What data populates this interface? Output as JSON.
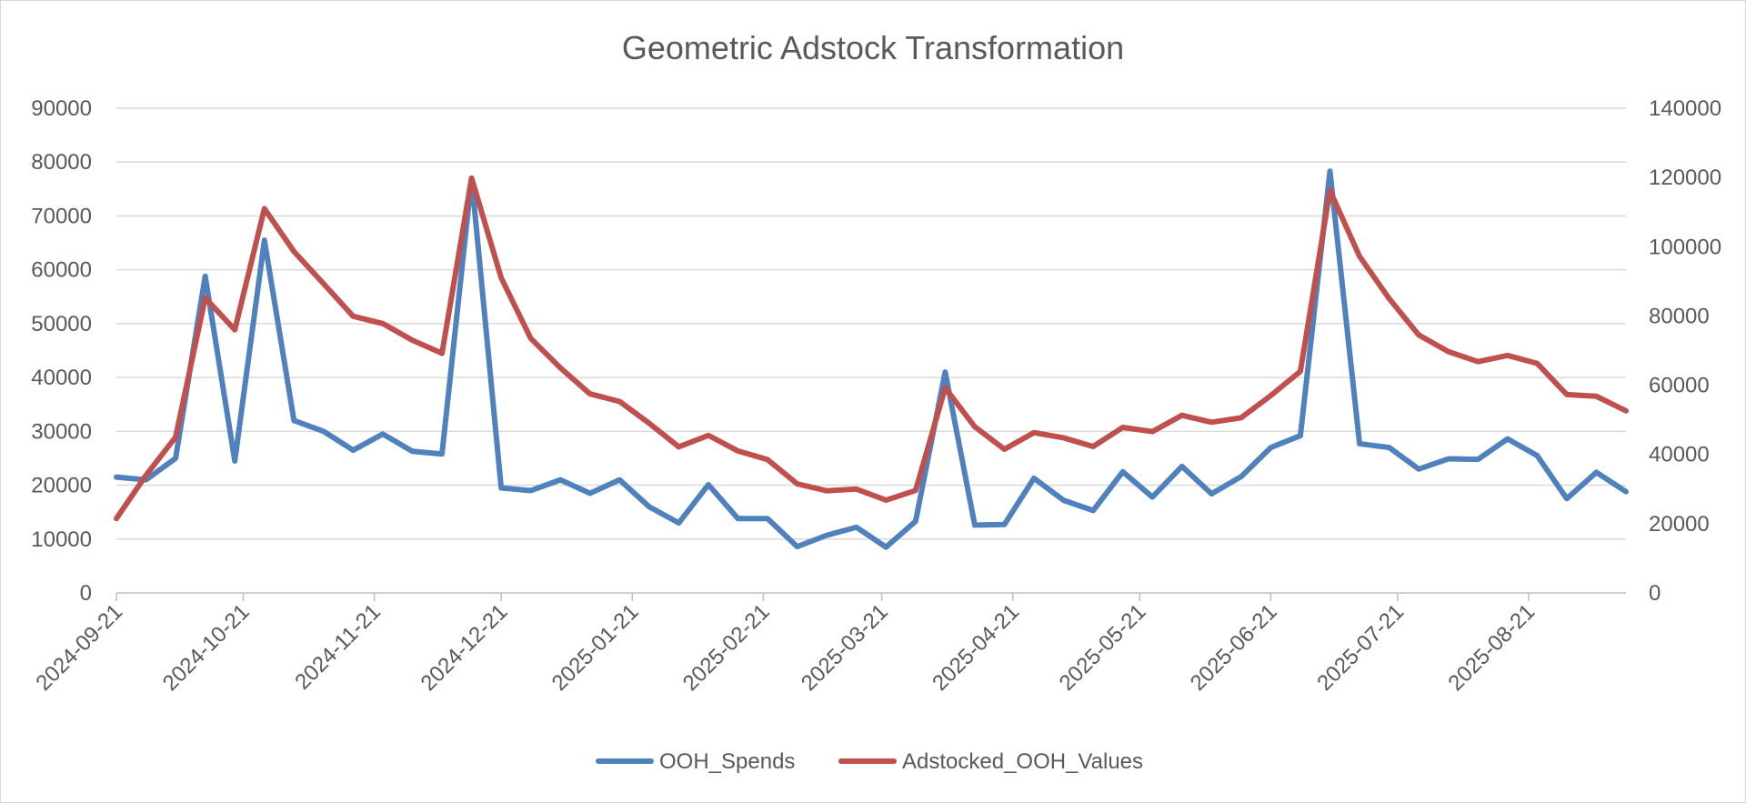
{
  "chart_data": {
    "type": "line",
    "title": "Geometric Adstock Transformation",
    "x_type": "date",
    "x": [
      "2024-09-21",
      "2024-09-28",
      "2024-10-05",
      "2024-10-12",
      "2024-10-19",
      "2024-10-26",
      "2024-11-02",
      "2024-11-09",
      "2024-11-16",
      "2024-11-23",
      "2024-11-30",
      "2024-12-07",
      "2024-12-14",
      "2024-12-21",
      "2024-12-28",
      "2025-01-04",
      "2025-01-11",
      "2025-01-18",
      "2025-01-25",
      "2025-02-01",
      "2025-02-08",
      "2025-02-15",
      "2025-02-22",
      "2025-03-01",
      "2025-03-08",
      "2025-03-15",
      "2025-03-22",
      "2025-03-29",
      "2025-04-05",
      "2025-04-12",
      "2025-04-19",
      "2025-04-26",
      "2025-05-03",
      "2025-05-10",
      "2025-05-17",
      "2025-05-24",
      "2025-05-31",
      "2025-06-07",
      "2025-06-14",
      "2025-06-21",
      "2025-06-28",
      "2025-07-05",
      "2025-07-12",
      "2025-07-19",
      "2025-07-26",
      "2025-08-02",
      "2025-08-09",
      "2025-08-16",
      "2025-08-23",
      "2025-08-30",
      "2025-09-06",
      "2025-09-13"
    ],
    "x_ticks": [
      "2024-09-21",
      "2024-10-21",
      "2024-11-21",
      "2024-12-21",
      "2025-01-21",
      "2025-02-21",
      "2025-03-21",
      "2025-04-21",
      "2025-05-21",
      "2025-06-21",
      "2025-07-21",
      "2025-08-21"
    ],
    "x_range": [
      "2024-09-21",
      "2025-09-13"
    ],
    "y_left": {
      "range": [
        0,
        90000
      ],
      "ticks": [
        0,
        10000,
        20000,
        30000,
        40000,
        50000,
        60000,
        70000,
        80000,
        90000
      ]
    },
    "y_right": {
      "range": [
        0,
        140000
      ],
      "ticks": [
        0,
        20000,
        40000,
        60000,
        80000,
        100000,
        120000,
        140000
      ]
    },
    "grid": true,
    "legend_position": "bottom",
    "series": [
      {
        "name": "OOH_Spends",
        "axis": "left",
        "color": "#4f81bd",
        "values": [
          21500,
          21000,
          25000,
          58800,
          24500,
          65500,
          32000,
          30000,
          26500,
          29500,
          26300,
          25800,
          77000,
          19500,
          19000,
          21000,
          18500,
          21000,
          16000,
          13000,
          20100,
          13800,
          13800,
          8600,
          10700,
          12200,
          8500,
          13300,
          41000,
          12600,
          12700,
          21300,
          17200,
          15300,
          22500,
          17800,
          23500,
          18400,
          21600,
          27000,
          29200,
          78300,
          27700,
          27000,
          23000,
          24900,
          24800,
          28600,
          25500,
          17500,
          22400,
          18800
        ]
      },
      {
        "name": "Adstocked_OOH_Values",
        "axis": "right",
        "color": "#c0504d",
        "values": [
          21500,
          34000,
          45000,
          85200,
          76000,
          111000,
          98600,
          89300,
          79900,
          77800,
          73000,
          69200,
          119800,
          91000,
          73500,
          65000,
          57500,
          55300,
          49000,
          42200,
          45500,
          41000,
          38500,
          31500,
          29500,
          30000,
          26800,
          29600,
          59200,
          48000,
          41500,
          46300,
          44800,
          42300,
          47800,
          46600,
          51300,
          49300,
          50600,
          57000,
          64000,
          116200,
          97200,
          85000,
          74500,
          69700,
          66800,
          68600,
          66300,
          57300,
          56800,
          52600
        ]
      }
    ]
  }
}
